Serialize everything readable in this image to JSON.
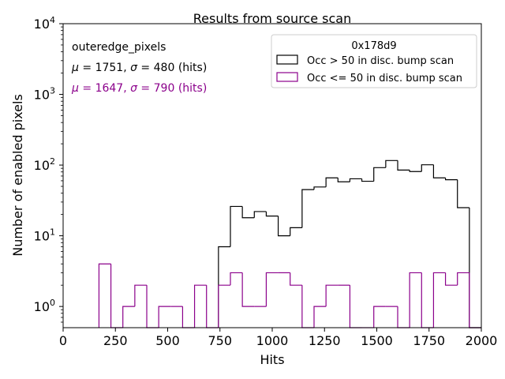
{
  "chart_data": {
    "type": "step-histogram",
    "title": "Results from source scan",
    "xlabel": "Hits",
    "ylabel": "Number of enabled pixels",
    "xlim": [
      0,
      2000
    ],
    "ylim_log10": [
      -0.3,
      4.0
    ],
    "yscale": "log",
    "x_ticks": [
      0,
      250,
      500,
      750,
      1000,
      1250,
      1500,
      1750,
      2000
    ],
    "y_tick_labels": [
      {
        "base": "10",
        "exp": "0",
        "value": 1
      },
      {
        "base": "10",
        "exp": "1",
        "value": 10
      },
      {
        "base": "10",
        "exp": "2",
        "value": 100
      },
      {
        "base": "10",
        "exp": "3",
        "value": 1000
      },
      {
        "base": "10",
        "exp": "4",
        "value": 10000
      }
    ],
    "bin_edges": [
      0,
      57.14,
      114.29,
      171.43,
      228.57,
      285.71,
      342.86,
      400,
      457.14,
      514.29,
      571.43,
      628.57,
      685.71,
      742.86,
      800,
      857.14,
      914.29,
      971.43,
      1028.57,
      1085.71,
      1142.86,
      1200,
      1257.14,
      1314.29,
      1371.43,
      1428.57,
      1485.71,
      1542.86,
      1600,
      1657.14,
      1714.29,
      1771.43,
      1828.57,
      1885.71,
      1942.86,
      2000
    ],
    "legend": {
      "title": "0x178d9",
      "position": "top-right"
    },
    "series": [
      {
        "name": "Occ > 50 in disc. bump scan",
        "color": "#000000",
        "bins": [
          {
            "x0": 742.86,
            "x1": 800,
            "count": 7
          },
          {
            "x0": 800,
            "x1": 857.14,
            "count": 26
          },
          {
            "x0": 857.14,
            "x1": 914.29,
            "count": 18
          },
          {
            "x0": 914.29,
            "x1": 971.43,
            "count": 22
          },
          {
            "x0": 971.43,
            "x1": 1028.57,
            "count": 19
          },
          {
            "x0": 1028.57,
            "x1": 1085.71,
            "count": 10
          },
          {
            "x0": 1085.71,
            "x1": 1142.86,
            "count": 13
          },
          {
            "x0": 1142.86,
            "x1": 1200,
            "count": 45
          },
          {
            "x0": 1200,
            "x1": 1257.14,
            "count": 49
          },
          {
            "x0": 1257.14,
            "x1": 1314.29,
            "count": 66
          },
          {
            "x0": 1314.29,
            "x1": 1371.43,
            "count": 58
          },
          {
            "x0": 1371.43,
            "x1": 1428.57,
            "count": 64
          },
          {
            "x0": 1428.57,
            "x1": 1485.71,
            "count": 59
          },
          {
            "x0": 1485.71,
            "x1": 1542.86,
            "count": 92
          },
          {
            "x0": 1542.86,
            "x1": 1600,
            "count": 116
          },
          {
            "x0": 1600,
            "x1": 1657.14,
            "count": 85
          },
          {
            "x0": 1657.14,
            "x1": 1714.29,
            "count": 81
          },
          {
            "x0": 1714.29,
            "x1": 1771.43,
            "count": 101
          },
          {
            "x0": 1771.43,
            "x1": 1828.57,
            "count": 66
          },
          {
            "x0": 1828.57,
            "x1": 1885.71,
            "count": 62
          },
          {
            "x0": 1885.71,
            "x1": 1942.86,
            "count": 25
          },
          {
            "x0": 1942.86,
            "x1": 2000,
            "count": 0.3
          }
        ]
      },
      {
        "name": "Occ <= 50 in disc. bump scan",
        "color": "#8b008b",
        "bins": [
          {
            "x0": 171.43,
            "x1": 228.57,
            "count": 4
          },
          {
            "x0": 228.57,
            "x1": 285.71,
            "count": 0.3
          },
          {
            "x0": 285.71,
            "x1": 342.86,
            "count": 1
          },
          {
            "x0": 342.86,
            "x1": 400,
            "count": 2
          },
          {
            "x0": 400,
            "x1": 457.14,
            "count": 0.3
          },
          {
            "x0": 457.14,
            "x1": 514.29,
            "count": 1
          },
          {
            "x0": 514.29,
            "x1": 571.43,
            "count": 1
          },
          {
            "x0": 571.43,
            "x1": 628.57,
            "count": 0.3
          },
          {
            "x0": 628.57,
            "x1": 685.71,
            "count": 2
          },
          {
            "x0": 685.71,
            "x1": 742.86,
            "count": 0.3
          },
          {
            "x0": 742.86,
            "x1": 800,
            "count": 2
          },
          {
            "x0": 800,
            "x1": 857.14,
            "count": 3
          },
          {
            "x0": 857.14,
            "x1": 914.29,
            "count": 1
          },
          {
            "x0": 914.29,
            "x1": 971.43,
            "count": 1
          },
          {
            "x0": 971.43,
            "x1": 1028.57,
            "count": 3
          },
          {
            "x0": 1028.57,
            "x1": 1085.71,
            "count": 3
          },
          {
            "x0": 1085.71,
            "x1": 1142.86,
            "count": 2
          },
          {
            "x0": 1142.86,
            "x1": 1200,
            "count": 0.3
          },
          {
            "x0": 1200,
            "x1": 1257.14,
            "count": 1
          },
          {
            "x0": 1257.14,
            "x1": 1314.29,
            "count": 2
          },
          {
            "x0": 1314.29,
            "x1": 1371.43,
            "count": 2
          },
          {
            "x0": 1371.43,
            "x1": 1428.57,
            "count": 0.3
          },
          {
            "x0": 1428.57,
            "x1": 1485.71,
            "count": 0.3
          },
          {
            "x0": 1485.71,
            "x1": 1542.86,
            "count": 1
          },
          {
            "x0": 1542.86,
            "x1": 1600,
            "count": 1
          },
          {
            "x0": 1600,
            "x1": 1657.14,
            "count": 0.3
          },
          {
            "x0": 1657.14,
            "x1": 1714.29,
            "count": 3
          },
          {
            "x0": 1714.29,
            "x1": 1771.43,
            "count": 0.3
          },
          {
            "x0": 1771.43,
            "x1": 1828.57,
            "count": 3
          },
          {
            "x0": 1828.57,
            "x1": 1885.71,
            "count": 2
          },
          {
            "x0": 1885.71,
            "x1": 1942.86,
            "count": 3
          },
          {
            "x0": 1942.86,
            "x1": 2000,
            "count": 0.3
          }
        ]
      }
    ],
    "annotations": {
      "label": "outeredge_pixels",
      "stats": [
        {
          "mu": "1751",
          "sigma": "480",
          "unit": "(hits)",
          "color": "#000000"
        },
        {
          "mu": "1647",
          "sigma": "790",
          "unit": "(hits)",
          "color": "#8b008b"
        }
      ]
    }
  }
}
